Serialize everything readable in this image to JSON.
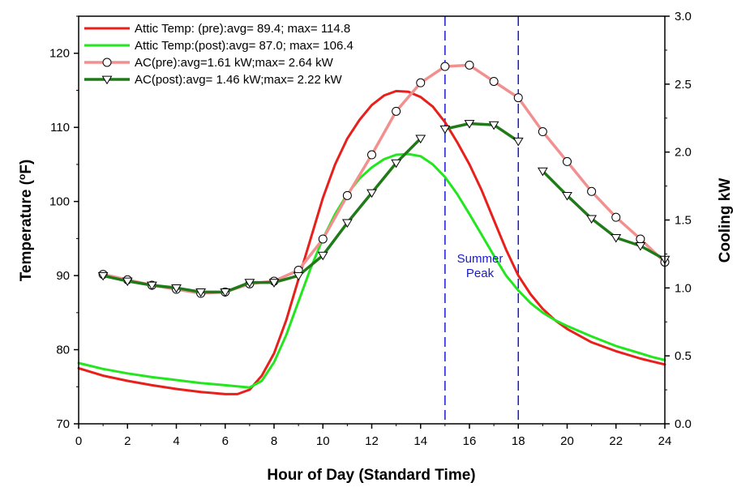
{
  "chart_data": {
    "type": "line",
    "xlabel": "Hour of Day (Standard Time)",
    "ylabel_left": "Temperature (",
    "ylabel_left_sup": "o",
    "ylabel_left_end": "F)",
    "ylabel_right": "Cooling kW",
    "xlim": [
      0,
      24
    ],
    "xticks": [
      0,
      2,
      4,
      6,
      8,
      10,
      12,
      14,
      16,
      18,
      20,
      22,
      24
    ],
    "ylim_left": [
      70,
      125
    ],
    "yticks_left": [
      70,
      80,
      90,
      100,
      110,
      120
    ],
    "ylim_right": [
      0.0,
      3.0
    ],
    "yticks_right": [
      "0.0",
      "0.5",
      "1.0",
      "1.5",
      "2.0",
      "2.5",
      "3.0"
    ],
    "vlines": [
      15,
      18
    ],
    "annotation": [
      "Summer",
      "Peak"
    ],
    "annotation_x": 16.5,
    "annotation_y": 89.5,
    "series": [
      {
        "name": "Attic Temp: (pre):avg= 89.4; max= 114.8",
        "axis": "left",
        "color": "#e8201c",
        "marker": "none",
        "width": 3,
        "x": [
          0,
          1,
          2,
          3,
          4,
          5,
          6,
          6.5,
          7,
          7.5,
          8,
          8.5,
          9,
          9.5,
          10,
          10.5,
          11,
          11.5,
          12,
          12.5,
          13,
          13.5,
          14,
          14.5,
          15,
          15.5,
          16,
          16.5,
          17,
          17.5,
          18,
          18.5,
          19,
          19.5,
          20,
          21,
          22,
          23,
          23.5,
          24
        ],
        "y": [
          77.5,
          76.5,
          75.8,
          75.2,
          74.7,
          74.3,
          74.0,
          74.0,
          74.6,
          76.5,
          79.5,
          84,
          89.5,
          95,
          100.5,
          105,
          108.5,
          111,
          113,
          114.3,
          114.9,
          114.8,
          114.1,
          112.8,
          110.7,
          108,
          105,
          101.5,
          97.5,
          93.5,
          90,
          87.5,
          85.5,
          84,
          82.8,
          81.0,
          79.8,
          78.8,
          78.4,
          78.0
        ]
      },
      {
        "name": "Attic Temp:(post):avg= 87.0; max= 106.4",
        "axis": "left",
        "color": "#22e61e",
        "marker": "none",
        "width": 3,
        "x": [
          0,
          1,
          2,
          3,
          4,
          5,
          6,
          7,
          7.5,
          8,
          8.5,
          9,
          9.5,
          10,
          10.5,
          11,
          11.5,
          12,
          12.5,
          13,
          13.5,
          14,
          14.5,
          15,
          15.5,
          16,
          16.5,
          17,
          17.5,
          18,
          18.5,
          19,
          19.5,
          20,
          21,
          22,
          23,
          23.5,
          24
        ],
        "y": [
          78.2,
          77.4,
          76.8,
          76.3,
          75.9,
          75.5,
          75.2,
          74.9,
          75.8,
          78.3,
          82,
          86.5,
          91,
          95,
          98.3,
          101,
          103.1,
          104.6,
          105.7,
          106.3,
          106.4,
          106.1,
          105,
          103.3,
          101,
          98.3,
          95.5,
          92.7,
          90,
          88,
          86.3,
          85,
          84,
          83.2,
          81.8,
          80.5,
          79.5,
          79.0,
          78.6
        ]
      },
      {
        "name": "AC(pre):avg=1.61 kW;max= 2.64 kW",
        "axis": "right",
        "color": "#f29090",
        "marker": "circle",
        "width": 3.5,
        "x": [
          1,
          2,
          3,
          4,
          5,
          6,
          7,
          8,
          9,
          10,
          11,
          12,
          13,
          14,
          15,
          16,
          17,
          18,
          19,
          20,
          21,
          22,
          23,
          24
        ],
        "y": [
          1.1,
          1.06,
          1.02,
          0.99,
          0.96,
          0.97,
          1.03,
          1.05,
          1.13,
          1.36,
          1.68,
          1.98,
          2.3,
          2.51,
          2.63,
          2.64,
          2.52,
          2.4,
          2.15,
          1.93,
          1.71,
          1.52,
          1.36,
          1.19
        ]
      },
      {
        "name": "AC(post):avg= 1.46 kW;max= 2.22 kW",
        "axis": "right",
        "color": "#1f7a18",
        "marker": "triangle",
        "width": 3.5,
        "segments": [
          {
            "x": [
              1,
              2,
              3,
              4,
              5,
              6,
              7,
              8,
              9,
              10,
              11,
              12,
              13,
              14
            ],
            "y": [
              1.09,
              1.05,
              1.02,
              1.0,
              0.97,
              0.97,
              1.04,
              1.04,
              1.09,
              1.24,
              1.48,
              1.7,
              1.92,
              2.1
            ]
          },
          {
            "x": [
              15,
              16,
              17,
              18
            ],
            "y": [
              2.17,
              2.21,
              2.2,
              2.08
            ]
          },
          {
            "x": [
              19,
              20,
              21,
              22,
              23,
              24
            ],
            "y": [
              1.86,
              1.68,
              1.51,
              1.37,
              1.31,
              1.21
            ]
          }
        ]
      }
    ]
  }
}
